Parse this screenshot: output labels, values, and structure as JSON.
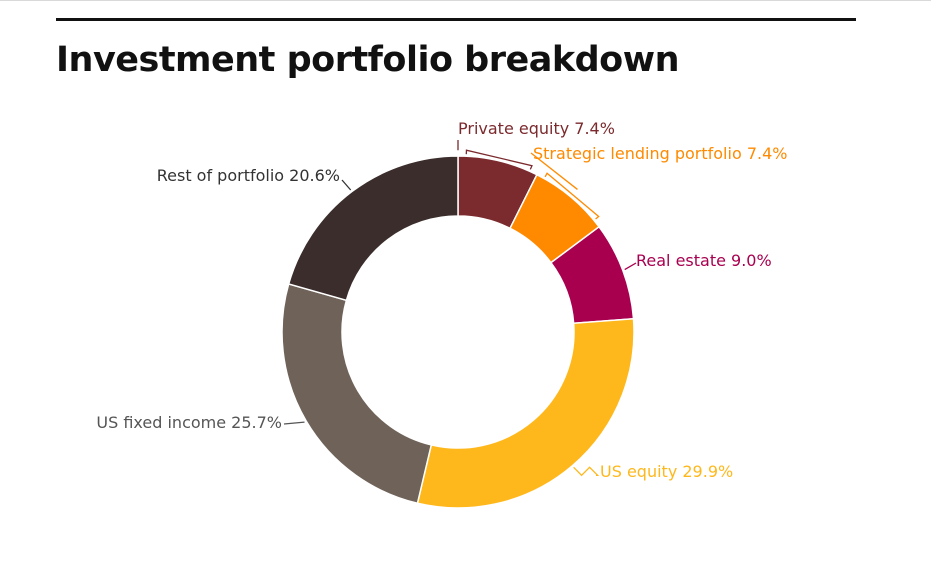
{
  "page": {
    "title": "Investment portfolio breakdown"
  },
  "chart_data": {
    "type": "pie",
    "donut": true,
    "title": "Investment portfolio breakdown",
    "slices": [
      {
        "name": "Private equity",
        "value": 7.4,
        "label": "Private equity 7.4%",
        "color": "#7b2a2d"
      },
      {
        "name": "Strategic lending portfolio",
        "value": 7.4,
        "label": "Strategic lending portfolio 7.4%",
        "color": "#ff8a00"
      },
      {
        "name": "Real estate",
        "value": 9.0,
        "label": "Real estate 9.0%",
        "color": "#a8004f"
      },
      {
        "name": "US equity",
        "value": 29.9,
        "label": "US equity  29.9%",
        "color": "#ffb81c"
      },
      {
        "name": "US fixed income",
        "value": 25.7,
        "label": "US fixed income 25.7%",
        "color": "#6e6259"
      },
      {
        "name": "Rest of portfolio",
        "value": 20.6,
        "label": "Rest of portfolio 20.6%",
        "color": "#3a2d2b"
      }
    ],
    "label_colors": [
      "#7b2a2d",
      "#ff8a00",
      "#a8004f",
      "#ffb81c",
      "#555555",
      "#333333"
    ]
  }
}
